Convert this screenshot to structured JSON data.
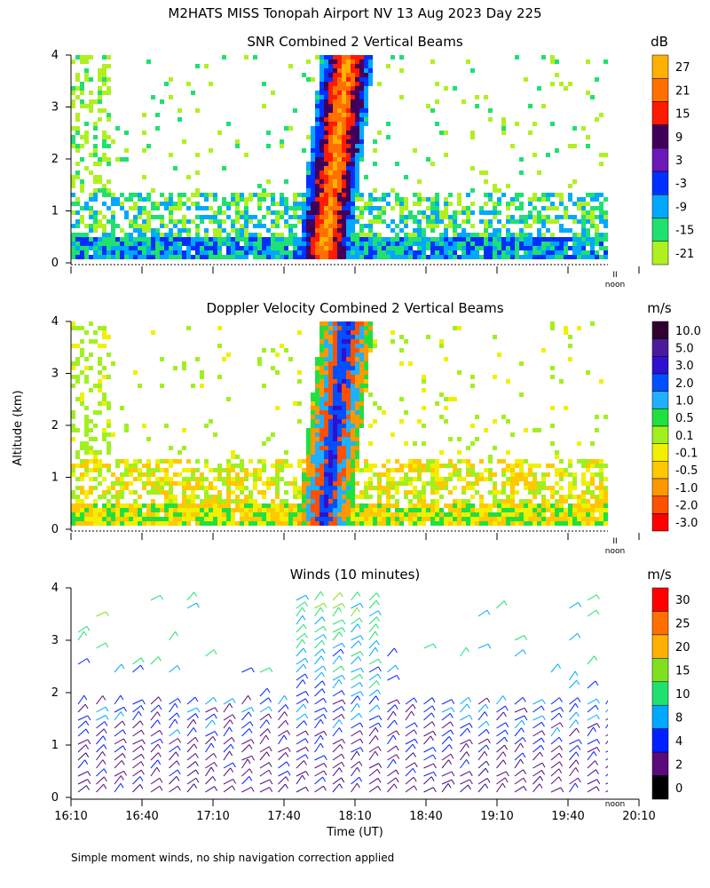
{
  "title": "M2HATS MISS Tonopah Airport NV  13 Aug 2023 Day 225",
  "footnote": "Simple moment winds, no ship navigation correction applied",
  "y_axis_shared_label": "Altitude (km)",
  "x_axis_label": "Time (UT)",
  "x_tick_labels": [
    "16:10",
    "16:40",
    "17:10",
    "17:40",
    "18:10",
    "18:40",
    "19:10",
    "19:40",
    "20:10"
  ],
  "noon_marker_label": "noon",
  "noon_marker_glyph": "II",
  "palette": {
    "white": "#ffffff",
    "black": "#000000",
    "accent_red": "#ff0000"
  },
  "chart_data": [
    {
      "type": "heatmap",
      "title": "SNR Combined 2 Vertical Beams",
      "units": "dB",
      "ylim": [
        0,
        4
      ],
      "y_ticks": [
        "0",
        "1",
        "2",
        "3",
        "4"
      ],
      "color_levels": [
        {
          "label": "27",
          "color": "#ffb000"
        },
        {
          "label": "21",
          "color": "#ff7000"
        },
        {
          "label": "15",
          "color": "#ff1a00"
        },
        {
          "label": "9",
          "color": "#40005a"
        },
        {
          "label": "3",
          "color": "#6a18b8"
        },
        {
          "label": "-3",
          "color": "#0030ff"
        },
        {
          "label": "-9",
          "color": "#00a8ff"
        },
        {
          "label": "-15",
          "color": "#20e070"
        },
        {
          "label": "-21",
          "color": "#b0f020"
        }
      ],
      "band_colors": [
        "#b0f020",
        "#20e070",
        "#00a8ff",
        "#0030ff",
        "#40005a",
        "#ff1a00",
        "#ff7000",
        "#ffb000"
      ]
    },
    {
      "type": "heatmap",
      "title": "Doppler Velocity Combined 2 Vertical Beams",
      "units": "m/s",
      "ylim": [
        0,
        4
      ],
      "y_ticks": [
        "0",
        "1",
        "2",
        "3",
        "4"
      ],
      "color_levels": [
        {
          "label": "10.0",
          "color": "#300030"
        },
        {
          "label": "5.0",
          "color": "#4a1a9a"
        },
        {
          "label": "3.0",
          "color": "#3010d0"
        },
        {
          "label": "2.0",
          "color": "#0050ff"
        },
        {
          "label": "1.0",
          "color": "#20b0ff"
        },
        {
          "label": "0.5",
          "color": "#20e040"
        },
        {
          "label": "0.1",
          "color": "#a0f020"
        },
        {
          "label": "-0.1",
          "color": "#f0f000"
        },
        {
          "label": "-0.5",
          "color": "#ffc800"
        },
        {
          "label": "-1.0",
          "color": "#ff9800"
        },
        {
          "label": "-2.0",
          "color": "#ff5000"
        },
        {
          "label": "-3.0",
          "color": "#ff0000"
        }
      ],
      "band_colors": [
        "#a0f020",
        "#f0f000",
        "#ffc800",
        "#20e040",
        "#ff9800",
        "#20b0ff",
        "#ff5000",
        "#0050ff",
        "#3010d0"
      ]
    },
    {
      "type": "scatter",
      "subtype": "wind-barbs",
      "title": "Winds (10 minutes)",
      "units": "m/s",
      "ylim": [
        0,
        4
      ],
      "y_ticks": [
        "0",
        "1",
        "2",
        "3",
        "4"
      ],
      "color_levels": [
        {
          "label": "30",
          "color": "#ff0000"
        },
        {
          "label": "25",
          "color": "#ff7000"
        },
        {
          "label": "20",
          "color": "#ffb000"
        },
        {
          "label": "15",
          "color": "#80e020"
        },
        {
          "label": "10",
          "color": "#20e070"
        },
        {
          "label": "8",
          "color": "#00a8ff"
        },
        {
          "label": "4",
          "color": "#0020ff"
        },
        {
          "label": "2",
          "color": "#5a0a7a"
        },
        {
          "label": "0",
          "color": "#000000"
        }
      ],
      "barb_colors": [
        "#3a0a80",
        "#5a0a7a",
        "#0020ff",
        "#00a8ff",
        "#20e070",
        "#80e020",
        "#ffb000",
        "#ff0000"
      ]
    }
  ]
}
